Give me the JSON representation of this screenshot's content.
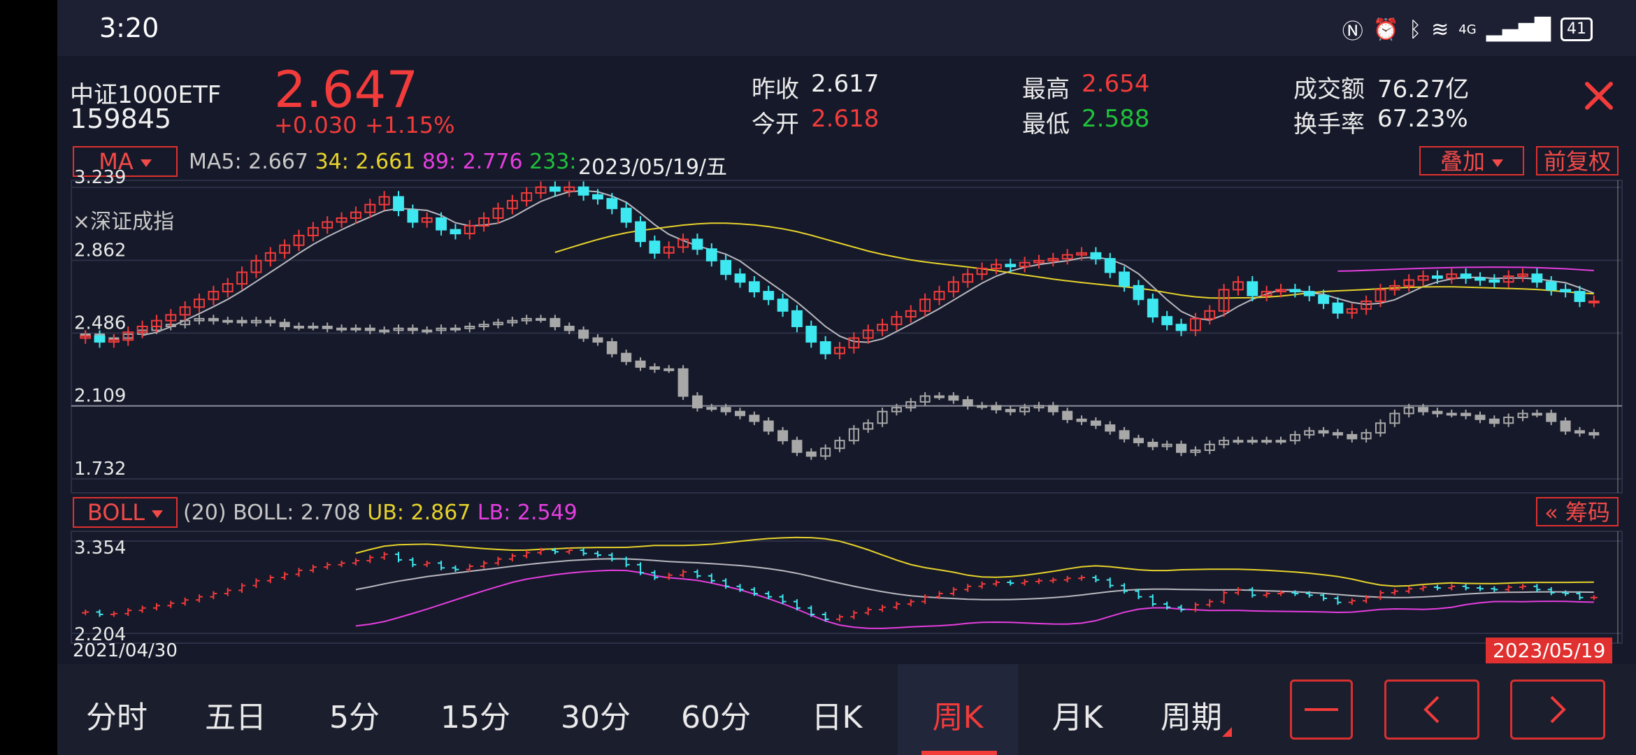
{
  "status": {
    "time": "3:20",
    "battery": "41",
    "network": "4G"
  },
  "quote": {
    "name": "中证1000ETF",
    "code": "159845",
    "price": "2.647",
    "change": "+0.030",
    "change_pct": "+1.15%",
    "prev_close_label": "昨收",
    "prev_close": "2.617",
    "open_label": "今开",
    "open": "2.618",
    "high_label": "最高",
    "high": "2.654",
    "low_label": "最低",
    "low": "2.588",
    "turnover_label": "成交额",
    "turnover": "76.27亿",
    "turnover_rate_label": "换手率",
    "turnover_rate": "67.23%"
  },
  "main_chart": {
    "indicator": "MA",
    "ma5": "MA5: 2.667",
    "ma34": "34: 2.661",
    "ma89": "89: 2.776",
    "ma233": "233:",
    "cursor_date": "2023/05/19/五",
    "overlay_button": "叠加",
    "adjust_button": "前复权",
    "overlay_index": "×深证成指",
    "y_ticks": [
      "3.239",
      "2.862",
      "2.486",
      "2.109",
      "1.732"
    ]
  },
  "sub_chart": {
    "indicator": "BOLL",
    "params": "(20) BOLL: 2.708",
    "ub": "UB: 2.867",
    "lb": "LB: 2.549",
    "chips_button": "筹码",
    "y_ticks": [
      "3.354",
      "2.204"
    ],
    "start_date": "2021/04/30",
    "end_date": "2023/05/19"
  },
  "tabs": [
    "分时",
    "五日",
    "5分",
    "15分",
    "30分",
    "60分",
    "日K",
    "周K",
    "月K",
    "周期"
  ],
  "selected_tab": "周K",
  "colors": {
    "up": "#f23b3b",
    "down": "#3ee8f0",
    "overlay": "#a8a8a8",
    "ma34": "#e6d22c",
    "ma89": "#e53ee0",
    "bg": "#161929"
  },
  "chart_data": {
    "type": "candlestick",
    "title": "",
    "price_range": [
      1.732,
      3.239
    ],
    "close_series": [
      2.47,
      2.44,
      2.45,
      2.49,
      2.52,
      2.55,
      2.58,
      2.62,
      2.66,
      2.7,
      2.74,
      2.8,
      2.86,
      2.9,
      2.94,
      2.99,
      3.03,
      3.06,
      3.08,
      3.11,
      3.15,
      3.19,
      3.12,
      3.06,
      3.08,
      3.02,
      3.0,
      3.04,
      3.08,
      3.13,
      3.17,
      3.21,
      3.24,
      3.22,
      3.24,
      3.2,
      3.18,
      3.13,
      3.06,
      2.96,
      2.9,
      2.93,
      2.97,
      2.92,
      2.86,
      2.79,
      2.75,
      2.7,
      2.66,
      2.6,
      2.52,
      2.44,
      2.38,
      2.41,
      2.46,
      2.5,
      2.53,
      2.57,
      2.6,
      2.66,
      2.7,
      2.75,
      2.79,
      2.82,
      2.84,
      2.83,
      2.85,
      2.86,
      2.87,
      2.89,
      2.9,
      2.87,
      2.8,
      2.73,
      2.66,
      2.57,
      2.53,
      2.5,
      2.56,
      2.6,
      2.71,
      2.75,
      2.68,
      2.7,
      2.71,
      2.7,
      2.68,
      2.64,
      2.59,
      2.61,
      2.65,
      2.71,
      2.73,
      2.76,
      2.78,
      2.77,
      2.79,
      2.77,
      2.76,
      2.75,
      2.78,
      2.79,
      2.75,
      2.71,
      2.7,
      2.65,
      2.65
    ],
    "overlay_series": [
      2.48,
      2.46,
      2.46,
      2.48,
      2.5,
      2.52,
      2.53,
      2.55,
      2.56,
      2.55,
      2.55,
      2.54,
      2.55,
      2.54,
      2.52,
      2.52,
      2.52,
      2.51,
      2.51,
      2.51,
      2.5,
      2.5,
      2.51,
      2.5,
      2.5,
      2.51,
      2.51,
      2.52,
      2.53,
      2.54,
      2.55,
      2.56,
      2.56,
      2.52,
      2.5,
      2.46,
      2.44,
      2.38,
      2.34,
      2.31,
      2.3,
      2.3,
      2.16,
      2.1,
      2.1,
      2.08,
      2.06,
      2.03,
      1.98,
      1.93,
      1.87,
      1.85,
      1.89,
      1.93,
      1.99,
      2.02,
      2.08,
      2.1,
      2.13,
      2.16,
      2.16,
      2.14,
      2.11,
      2.11,
      2.09,
      2.08,
      2.1,
      2.11,
      2.08,
      2.04,
      2.03,
      2.01,
      1.98,
      1.94,
      1.92,
      1.9,
      1.91,
      1.87,
      1.88,
      1.91,
      1.93,
      1.93,
      1.93,
      1.93,
      1.93,
      1.96,
      1.98,
      1.97,
      1.96,
      1.94,
      1.97,
      2.02,
      2.07,
      2.1,
      2.08,
      2.07,
      2.07,
      2.06,
      2.04,
      2.02,
      2.05,
      2.07,
      2.07,
      2.03,
      1.98,
      1.97,
      1.96
    ],
    "boll_range": [
      2.204,
      3.354
    ],
    "x_range": [
      "2021/04/30",
      "2023/05/19"
    ]
  }
}
